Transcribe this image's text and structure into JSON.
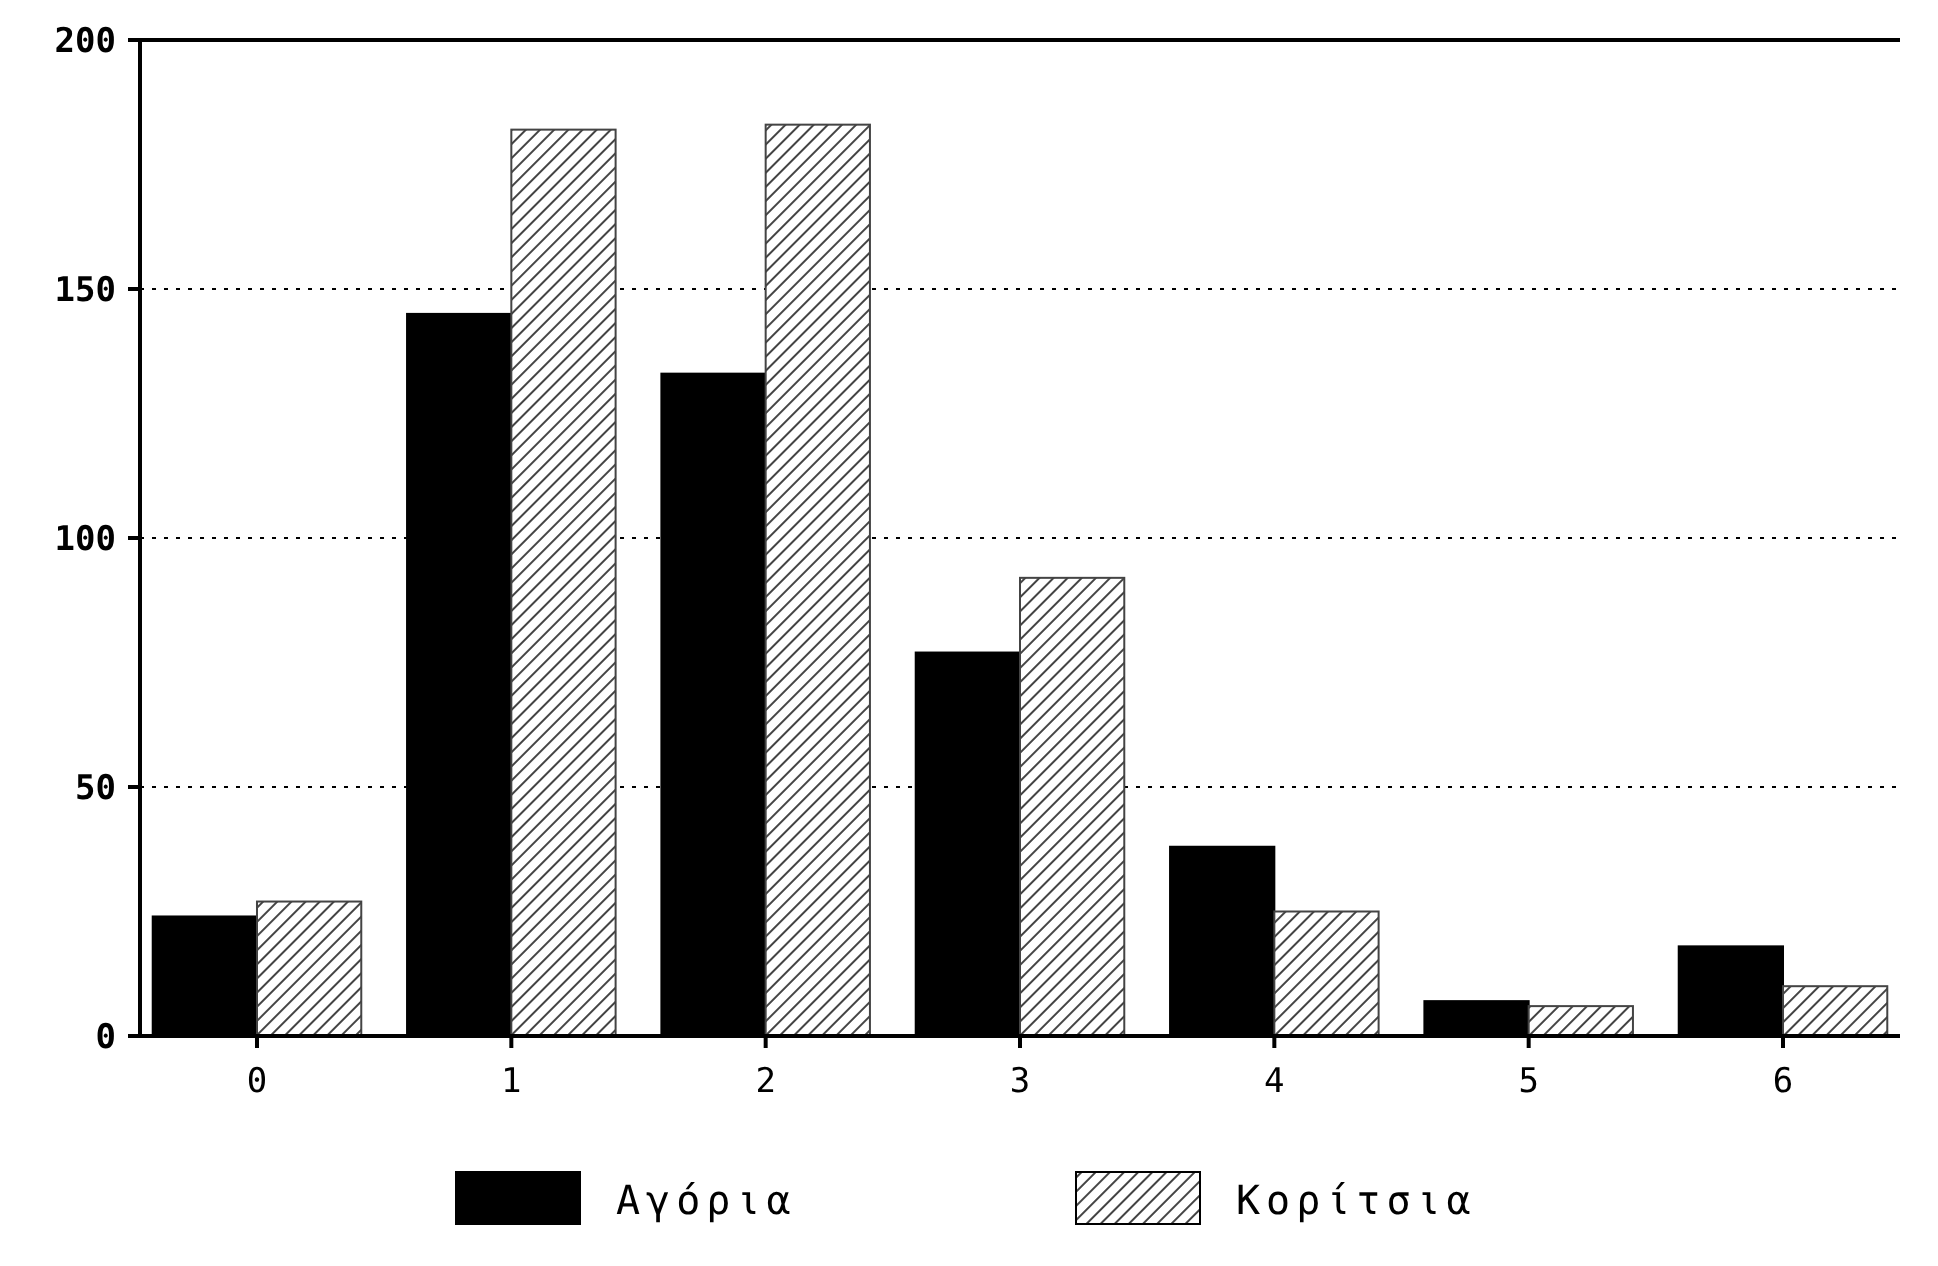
{
  "chart_data": {
    "type": "bar",
    "categories": [
      "0",
      "1",
      "2",
      "3",
      "4",
      "5",
      "6"
    ],
    "series": [
      {
        "name": "Αγόρια",
        "color": "#000000",
        "values": [
          24,
          145,
          133,
          77,
          38,
          7,
          18
        ]
      },
      {
        "name": "Κορίτσια",
        "color": "#444444",
        "values": [
          27,
          182,
          183,
          92,
          25,
          6,
          10
        ]
      }
    ],
    "ylim": [
      0,
      200
    ],
    "yticks": [
      0,
      50,
      100,
      150,
      200
    ],
    "grid": "y",
    "legend": "bottom"
  }
}
